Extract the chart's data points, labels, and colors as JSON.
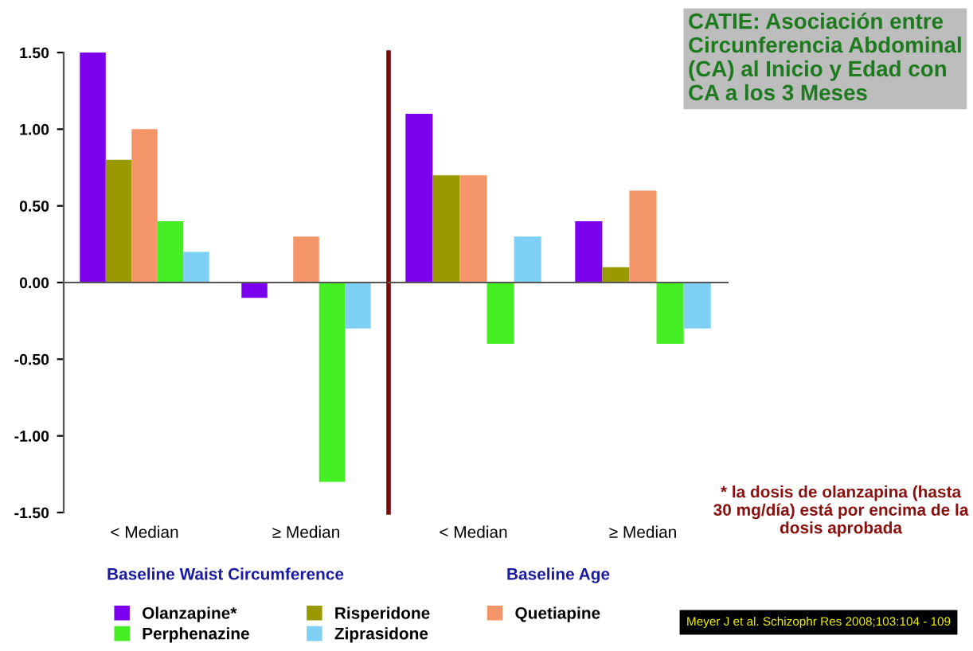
{
  "chart_data": [
    {
      "type": "bar",
      "xlabel": "Baseline Waist Circumference",
      "categories": [
        "< Median",
        "≥ Median"
      ],
      "series": [
        {
          "name": "Olanzapine*",
          "color": "#7a00ee",
          "values": [
            1.5,
            -0.1
          ]
        },
        {
          "name": "Risperidone",
          "color": "#9a9a00",
          "values": [
            0.8,
            0
          ]
        },
        {
          "name": "Quetiapine",
          "color": "#f4956a",
          "values": [
            1.0,
            0.3
          ]
        },
        {
          "name": "Perphenazine",
          "color": "#44ee22",
          "values": [
            0.4,
            -1.3
          ]
        },
        {
          "name": "Ziprasidone",
          "color": "#7fd0f5",
          "values": [
            0.2,
            -0.3
          ]
        }
      ],
      "ylim": [
        -1.5,
        1.5
      ],
      "yticks": [
        {
          "value": -1.5,
          "label": "-1.50"
        },
        {
          "value": -1.0,
          "label": "-1.00"
        },
        {
          "value": -0.5,
          "label": "-0.50"
        },
        {
          "value": 0,
          "label": "0.00"
        },
        {
          "value": 0.5,
          "label": "0.50"
        },
        {
          "value": 1.0,
          "label": "1.00"
        },
        {
          "value": 1.5,
          "label": "1.50"
        }
      ],
      "legend": "bottom"
    },
    {
      "type": "bar",
      "xlabel": "Baseline Age",
      "categories": [
        "< Median",
        "≥ Median"
      ],
      "title": "CATIE: Asociación entre Circunferencia Abdominal (CA) al Inicio y Edad con CA a los 3 Meses",
      "series": [
        {
          "color": "#7a00ee",
          "values": [
            1.1,
            0.4
          ]
        },
        {
          "color": "#9a9a00",
          "values": [
            0.7,
            0.1
          ]
        },
        {
          "color": "#f4956a",
          "values": [
            0.7,
            0.6
          ]
        },
        {
          "color": "#44ee22",
          "values": [
            -0.4,
            -0.4
          ]
        },
        {
          "color": "#7fd0f5",
          "values": [
            0.3,
            -0.3
          ]
        }
      ],
      "ylim": [
        -1.5,
        1.5
      ],
      "tick_labels": "x",
      "annotations": [
        "* la dosis de olanzapina (hasta 30 mg/día) está por encima de la dosis aprobada",
        "Meyer J et al. Schizophr Res 2008;103:104 - 109"
      ]
    }
  ]
}
